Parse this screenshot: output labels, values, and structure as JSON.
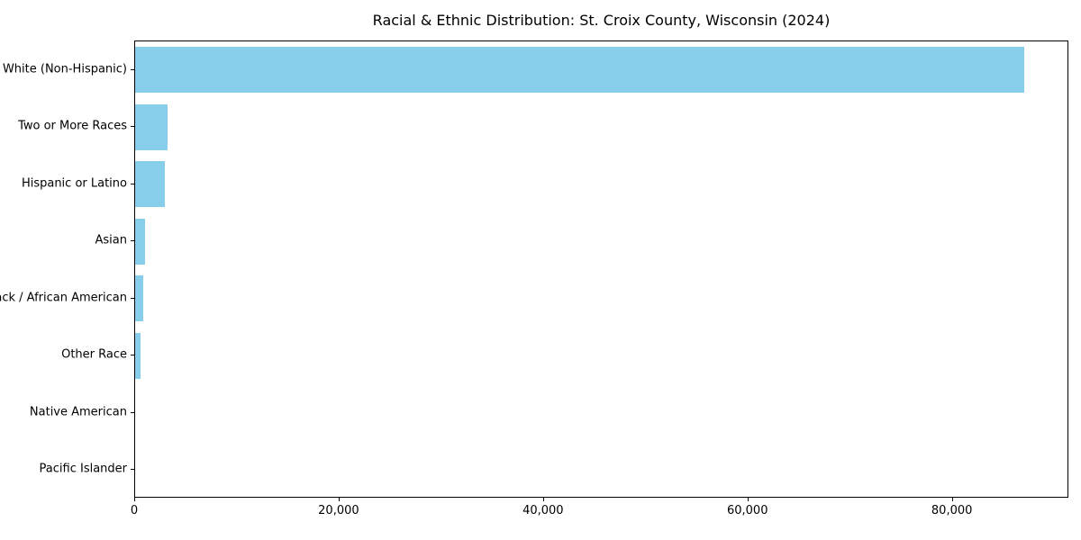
{
  "chart_data": {
    "type": "bar",
    "orientation": "horizontal",
    "title": "Racial & Ethnic Distribution: St. Croix County, Wisconsin (2024)",
    "categories": [
      "White (Non-Hispanic)",
      "Two or More Races",
      "Hispanic or Latino",
      "Asian",
      "Black / African American",
      "Other Race",
      "Native American",
      "Pacific Islander"
    ],
    "values": [
      87000,
      3150,
      2900,
      970,
      800,
      550,
      0,
      0
    ],
    "xlabel": "",
    "ylabel": "",
    "xlim": [
      0,
      91400
    ],
    "x_ticks": [
      0,
      20000,
      40000,
      60000,
      80000
    ],
    "x_tick_labels": [
      "0",
      "20,000",
      "40,000",
      "60,000",
      "80,000"
    ],
    "bar_color": "#87CEEB",
    "background_color": "#ffffff",
    "spine_color": "#000000",
    "grid": false,
    "legend": null,
    "bar_height_fraction": 0.8
  }
}
